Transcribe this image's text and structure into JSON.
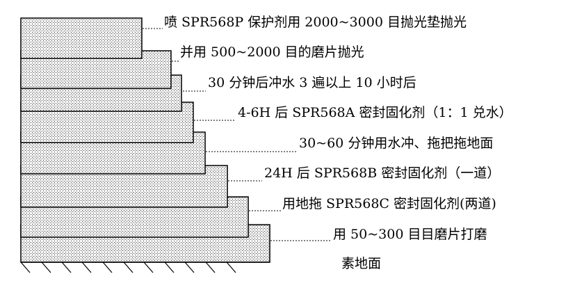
{
  "layers": [
    {
      "label": "喷 SPR568P 保护剂用 2000~3000 目抛光垫抛光"
    },
    {
      "label": "并用 500~2000 目的磨片抛光"
    },
    {
      "label": "30 分钟后冲水 3 遍以上 10 小时后"
    },
    {
      "label": "4-6H 后 SPR568A 密封固化剂（1：1 兑水）"
    },
    {
      "label": "30~60 分钟用水冲、拖把拖地面"
    },
    {
      "label": "24H 后 SPR568B 密封固化剂（一道）"
    },
    {
      "label": "用地拖 SPR568C 密封固化剂(两道)"
    },
    {
      "label": "用 50~300 目目磨片打磨"
    }
  ],
  "base": {
    "label": "素地面"
  }
}
